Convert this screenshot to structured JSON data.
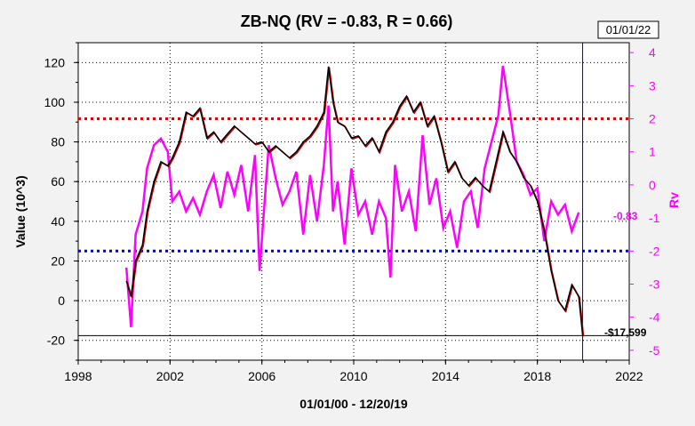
{
  "chart_data": {
    "type": "line",
    "title": "ZB-NQ (RV = -0.83,  R = 0.66)",
    "xlabel": "01/01/00 - 12/20/19",
    "ylabel": "Value (10^3)",
    "y2label": "Rv",
    "date_box": "01/01/22",
    "xlim": [
      1998,
      2022
    ],
    "ylim": [
      -30,
      130
    ],
    "y2lim": [
      -5.3,
      4.3
    ],
    "x_ticks": [
      1998,
      2002,
      2006,
      2010,
      2014,
      2018,
      2022
    ],
    "y_ticks": [
      -20,
      0,
      20,
      40,
      60,
      80,
      100,
      120
    ],
    "y2_ticks": [
      -5,
      -4,
      -3,
      -2,
      -1,
      0,
      1,
      2,
      3,
      4
    ],
    "grid": true,
    "reference_lines": {
      "upper_rv": 2,
      "lower_rv": -2,
      "end_value": -17.6
    },
    "cursor_x": 2019.97,
    "end_labels": {
      "value": "-$17,599",
      "rv": "-0.83"
    },
    "colors": {
      "value": "#000000",
      "value_secondary": "#c00000",
      "rv": "#ff00ff",
      "upper_line": "#e00000",
      "lower_line": "#0000d0",
      "cursor": "#0000c0"
    },
    "series": [
      {
        "axis": "left",
        "x": [
          2000.1,
          2000.3,
          2000.5,
          2000.8,
          2001.0,
          2001.3,
          2001.6,
          2001.9,
          2002.1,
          2002.4,
          2002.7,
          2003.0,
          2003.3,
          2003.6,
          2003.9,
          2004.2,
          2004.5,
          2004.8,
          2005.1,
          2005.4,
          2005.7,
          2006.0,
          2006.3,
          2006.6,
          2006.9,
          2007.2,
          2007.5,
          2007.8,
          2008.1,
          2008.4,
          2008.7,
          2008.9,
          2009.1,
          2009.3,
          2009.6,
          2009.9,
          2010.2,
          2010.5,
          2010.8,
          2011.1,
          2011.4,
          2011.7,
          2012.0,
          2012.3,
          2012.6,
          2012.9,
          2013.2,
          2013.5,
          2013.8,
          2014.1,
          2014.4,
          2014.7,
          2015.0,
          2015.3,
          2015.6,
          2015.9,
          2016.2,
          2016.5,
          2016.8,
          2017.1,
          2017.4,
          2017.7,
          2018.0,
          2018.3,
          2018.6,
          2018.9,
          2019.2,
          2019.5,
          2019.8,
          2019.97
        ],
        "values": [
          10,
          2,
          20,
          28,
          45,
          60,
          70,
          68,
          72,
          80,
          95,
          93,
          97,
          82,
          85,
          80,
          84,
          88,
          85,
          82,
          79,
          80,
          75,
          78,
          75,
          72,
          75,
          80,
          83,
          88,
          95,
          118,
          100,
          90,
          88,
          82,
          83,
          78,
          82,
          75,
          85,
          90,
          98,
          103,
          95,
          100,
          88,
          93,
          80,
          65,
          70,
          62,
          58,
          62,
          58,
          55,
          70,
          85,
          75,
          70,
          62,
          58,
          50,
          35,
          15,
          0,
          -5,
          8,
          2,
          -17.6
        ]
      },
      {
        "axis": "right",
        "x": [
          2000.1,
          2000.3,
          2000.5,
          2000.8,
          2001.0,
          2001.3,
          2001.6,
          2001.9,
          2002.1,
          2002.4,
          2002.7,
          2003.0,
          2003.3,
          2003.6,
          2003.9,
          2004.2,
          2004.5,
          2004.8,
          2005.1,
          2005.4,
          2005.7,
          2005.9,
          2006.3,
          2006.6,
          2006.9,
          2007.2,
          2007.5,
          2007.8,
          2008.1,
          2008.4,
          2008.7,
          2008.9,
          2009.1,
          2009.3,
          2009.6,
          2009.9,
          2010.2,
          2010.5,
          2010.8,
          2011.1,
          2011.4,
          2011.6,
          2011.8,
          2012.1,
          2012.4,
          2012.7,
          2013.0,
          2013.3,
          2013.6,
          2013.9,
          2014.2,
          2014.5,
          2014.8,
          2015.1,
          2015.4,
          2015.7,
          2016.0,
          2016.3,
          2016.5,
          2016.8,
          2017.1,
          2017.4,
          2017.7,
          2018.0,
          2018.3,
          2018.6,
          2018.9,
          2019.2,
          2019.5,
          2019.8
        ],
        "values": [
          -2.5,
          -4.3,
          -1.5,
          -0.8,
          0.5,
          1.2,
          1.4,
          1.0,
          -0.5,
          -0.2,
          -0.8,
          -0.4,
          -0.9,
          -0.2,
          0.3,
          -0.7,
          0.4,
          -0.3,
          0.6,
          -0.8,
          0.9,
          -2.6,
          1.2,
          0.2,
          -0.6,
          -0.2,
          0.4,
          -1.5,
          0.3,
          -1.1,
          0.6,
          2.4,
          -0.8,
          0.1,
          -1.8,
          0.5,
          -0.9,
          -0.5,
          -1.5,
          -0.5,
          -1.0,
          -2.8,
          0.6,
          -0.8,
          -0.2,
          -1.4,
          1.5,
          -0.6,
          0.2,
          -1.3,
          -0.8,
          -1.9,
          -0.5,
          -0.2,
          -1.3,
          0.5,
          1.3,
          2.1,
          3.6,
          2.2,
          0.7,
          0.3,
          -0.3,
          -0.1,
          -1.7,
          -0.5,
          -0.9,
          -0.6,
          -1.4,
          -0.83
        ]
      }
    ]
  }
}
